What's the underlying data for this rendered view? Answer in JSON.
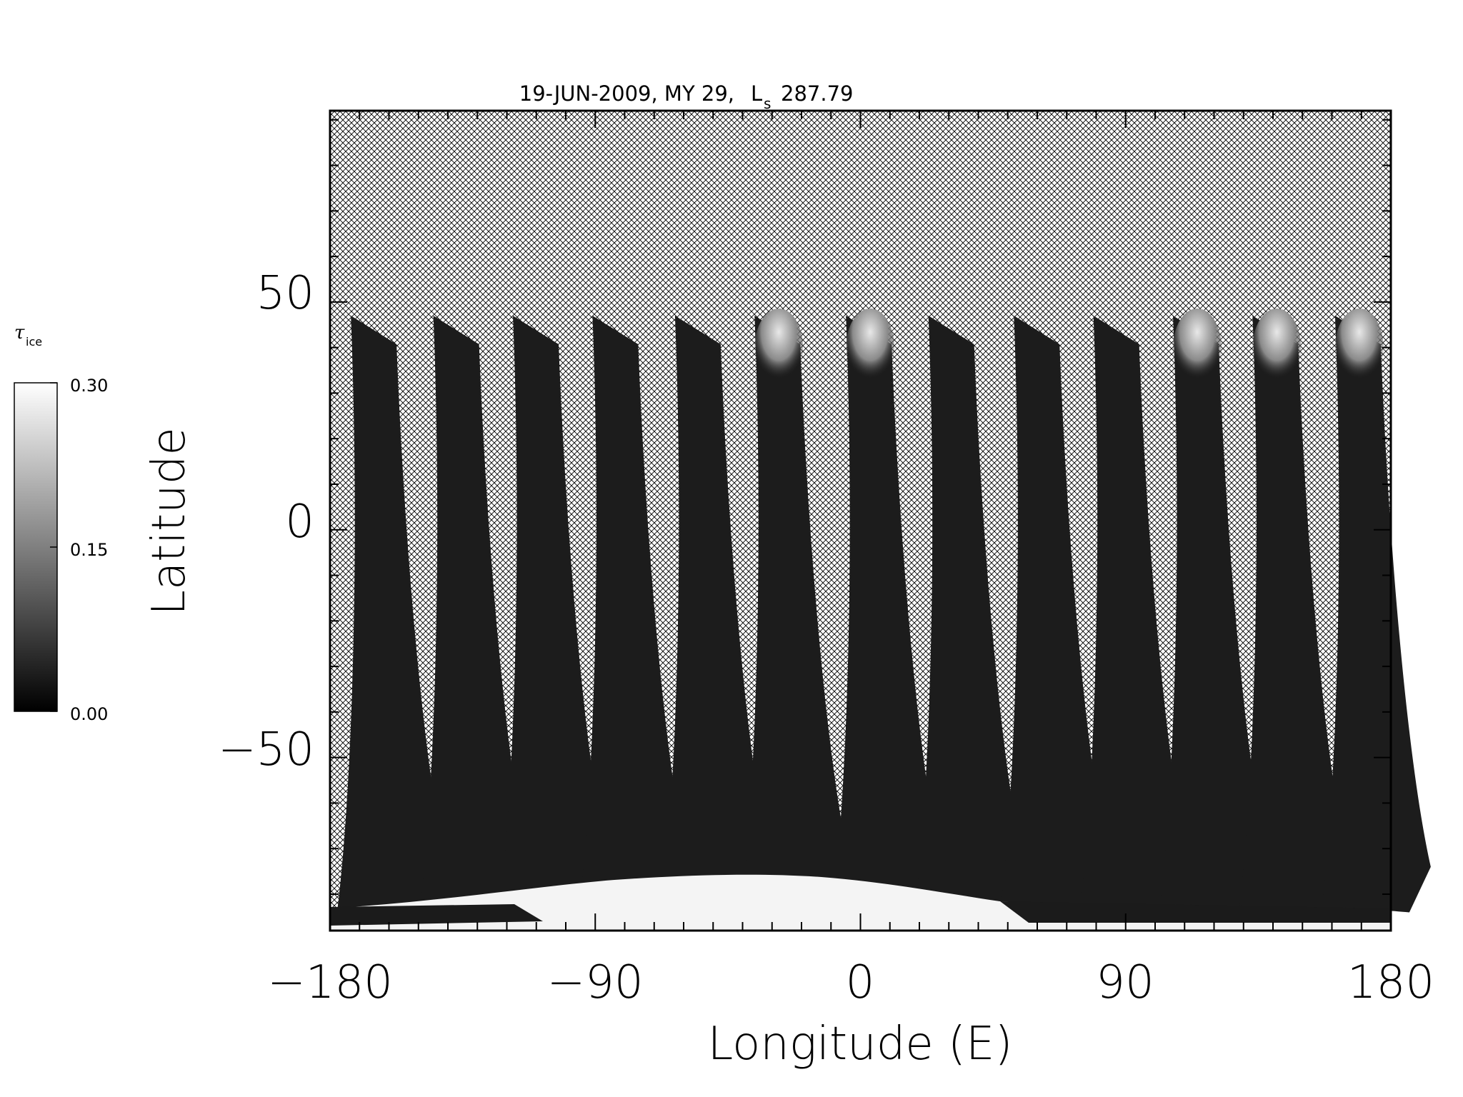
{
  "chart_data": {
    "type": "heatmap",
    "title": "19-JUN-2009, MY 29,",
    "title_ls_symbol": "L",
    "title_ls_subscript": "s",
    "title_ls_value": "287.79",
    "xlabel": "Longitude (E)",
    "ylabel": "Latitude",
    "xlim": [
      -180,
      180
    ],
    "ylim": [
      -88,
      92
    ],
    "xticks": [
      -180,
      -90,
      0,
      90,
      180
    ],
    "xtick_labels": [
      "−180",
      "−90",
      "0",
      "90",
      "180"
    ],
    "yticks": [
      -50,
      0,
      50
    ],
    "ytick_labels": [
      "−50",
      "0",
      "50"
    ],
    "grid": false,
    "no_data_fill": "crosshatch",
    "colorbar": {
      "symbol": "τ",
      "subscript": "ice",
      "min": 0.0,
      "max": 0.3,
      "ticks": [
        0.0,
        0.15,
        0.3
      ],
      "tick_labels": [
        "0.00",
        "0.15",
        "0.30"
      ],
      "colors": [
        "#000000",
        "#ffffff"
      ]
    },
    "swaths": [
      {
        "lon_top": -171,
        "note": "dark swath"
      },
      {
        "lon_top": -143
      },
      {
        "lon_top": -116
      },
      {
        "lon_top": -89
      },
      {
        "lon_top": -61
      },
      {
        "lon_top": -34,
        "bright_top": true
      },
      {
        "lon_top": -3,
        "bright_top": true
      },
      {
        "lon_top": 25
      },
      {
        "lon_top": 54
      },
      {
        "lon_top": 81
      },
      {
        "lon_top": 108,
        "bright_top": true
      },
      {
        "lon_top": 135,
        "bright_top": true
      },
      {
        "lon_top": 163,
        "bright_top": true
      }
    ],
    "south_cap_value": 0.3
  }
}
